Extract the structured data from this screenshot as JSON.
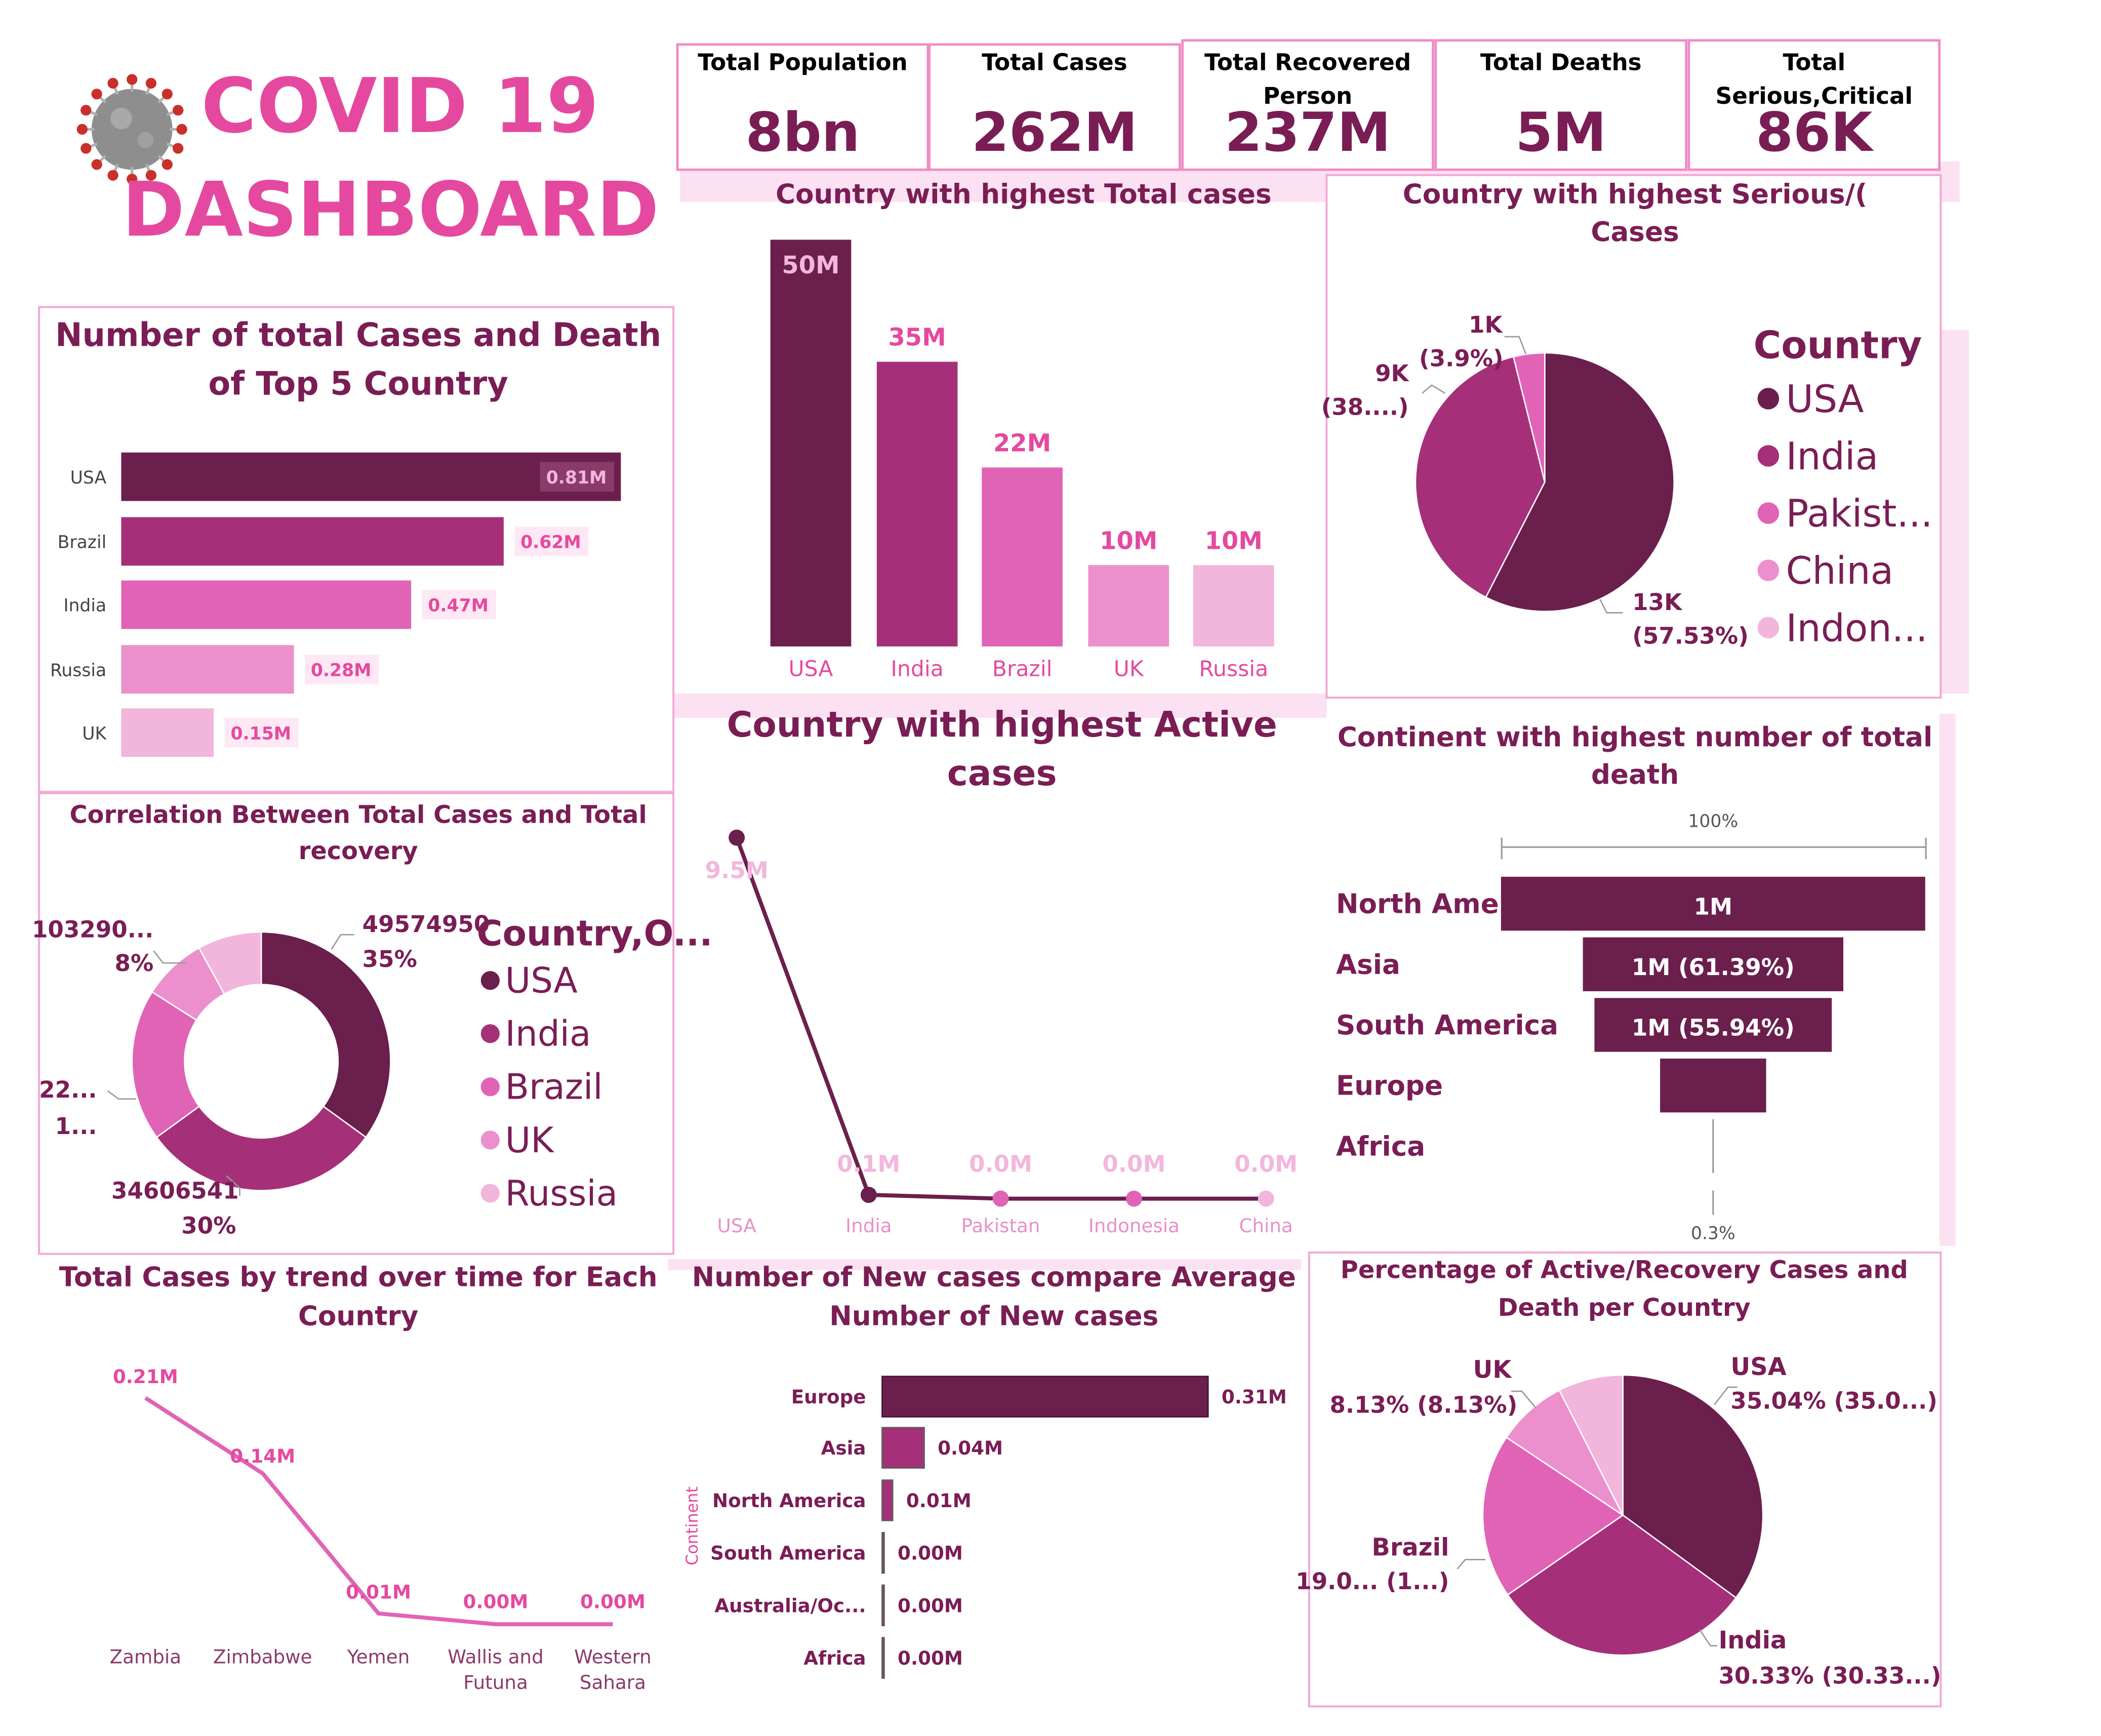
{
  "header": {
    "title_line1": "COVID 19",
    "title_line2": "DASHBOARD"
  },
  "kpis": [
    {
      "label_lines": [
        "Total Population"
      ],
      "value": "8bn"
    },
    {
      "label_lines": [
        "Total Cases"
      ],
      "value": "262M"
    },
    {
      "label_lines": [
        "Total Recovered",
        "Person"
      ],
      "value": "237M"
    },
    {
      "label_lines": [
        "Total Deaths"
      ],
      "value": "5M"
    },
    {
      "label_lines": [
        "Total",
        "Serious,Critical"
      ],
      "value": "86K"
    }
  ],
  "colors": {
    "c1": "#6b1f4d",
    "c2": "#a53079",
    "c3": "#e163b6",
    "c4": "#ec8fcd",
    "c5": "#f2b5dc",
    "accent": "#e5499f",
    "title": "#7a1d55"
  },
  "chart_data": [
    {
      "id": "top5_cases_death",
      "type": "bar",
      "orientation": "horizontal",
      "title_lines": [
        "Number of total Cases and Death",
        "of Top 5 Country"
      ],
      "categories": [
        "USA",
        "Brazil",
        "India",
        "Russia",
        "UK"
      ],
      "values": [
        0.81,
        0.62,
        0.47,
        0.28,
        0.15
      ],
      "value_labels": [
        "0.81M",
        "0.62M",
        "0.47M",
        "0.28M",
        "0.15M"
      ]
    },
    {
      "id": "highest_total_cases",
      "type": "bar",
      "title_lines": [
        "Country with highest Total cases"
      ],
      "categories": [
        "USA",
        "India",
        "Brazil",
        "UK",
        "Russia"
      ],
      "values": [
        50,
        35,
        22,
        10,
        10
      ],
      "value_labels": [
        "50M",
        "35M",
        "22M",
        "10M",
        "10M"
      ]
    },
    {
      "id": "serious_critical",
      "type": "pie",
      "title_lines": [
        "Country with highest Serious/(",
        "Cases"
      ],
      "legend_title": "Country",
      "legend": [
        "USA",
        "India",
        "Pakist...",
        "China",
        "Indon..."
      ],
      "slices": [
        {
          "value": 57.53,
          "label_lines": [
            "13K",
            "(57.53%)"
          ]
        },
        {
          "value": 38.57,
          "label_lines": [
            "9K",
            "(38....)"
          ]
        },
        {
          "value": 3.9,
          "label_lines": [
            "1K",
            "(3.9%)"
          ]
        }
      ]
    },
    {
      "id": "correlation_donut",
      "type": "pie",
      "donut": true,
      "title_lines": [
        "Correlation Between Total Cases and Total",
        "recovery"
      ],
      "legend_title": "Country,O...",
      "legend": [
        "USA",
        "India",
        "Brazil",
        "UK",
        "Russia"
      ],
      "slices": [
        {
          "value": 35,
          "label_lines": [
            "49574950",
            "35%"
          ]
        },
        {
          "value": 30,
          "label_lines": [
            "34606541",
            "30%"
          ]
        },
        {
          "value": 19,
          "label_lines": [
            "22...",
            "1..."
          ]
        },
        {
          "value": 8,
          "label_lines": []
        },
        {
          "value": 8,
          "label_lines": [
            "103290...",
            "8%"
          ]
        }
      ]
    },
    {
      "id": "highest_active",
      "type": "line",
      "title_lines": [
        "Country with highest Active",
        "cases"
      ],
      "x": [
        "USA",
        "India",
        "Pakistan",
        "Indonesia",
        "China"
      ],
      "values": [
        9.5,
        0.1,
        0.0,
        0.0,
        0.0
      ],
      "value_labels": [
        "9.5M",
        "0.1M",
        "0.0M",
        "0.0M",
        "0.0M"
      ]
    },
    {
      "id": "continent_deaths",
      "type": "bar",
      "subtype": "funnel",
      "title_lines": [
        "Continent with highest number of total",
        "death"
      ],
      "categories": [
        "North Amer",
        "Asia",
        "South America",
        "Europe",
        "Africa"
      ],
      "values": [
        100,
        61.39,
        55.94,
        25,
        0.3
      ],
      "value_labels": [
        "1M",
        "1M (61.39%)",
        "1M (55.94%)",
        "",
        ""
      ],
      "top_label": "100%",
      "bottom_label": "0.3%"
    },
    {
      "id": "trend_over_time",
      "type": "line",
      "title_lines": [
        "Total Cases by trend over time for Each",
        "Country"
      ],
      "x": [
        "Zambia",
        "Zimbabwe",
        "Yemen",
        "Wallis and Futuna",
        "Western Sahara"
      ],
      "x_label_lines": [
        [
          "Zambia"
        ],
        [
          "Zimbabwe"
        ],
        [
          "Yemen"
        ],
        [
          "Wallis and",
          "Futuna"
        ],
        [
          "Western",
          "Sahara"
        ]
      ],
      "values": [
        0.21,
        0.14,
        0.01,
        0.0,
        0.0
      ],
      "value_labels": [
        "0.21M",
        "0.14M",
        "0.01M",
        "0.00M",
        "0.00M"
      ]
    },
    {
      "id": "new_cases",
      "type": "bar",
      "orientation": "horizontal",
      "title_lines": [
        "Number of New cases compare Average",
        "Number of New cases"
      ],
      "ylabel": "Continent",
      "categories": [
        "Europe",
        "Asia",
        "North America",
        "South America",
        "Australia/Oc...",
        "Africa"
      ],
      "values": [
        0.31,
        0.04,
        0.01,
        0.0,
        0.0,
        0.0
      ],
      "value_labels": [
        "0.31M",
        "0.04M",
        "0.01M",
        "0.00M",
        "0.00M",
        "0.00M"
      ]
    },
    {
      "id": "active_recovery_death",
      "type": "pie",
      "title_lines": [
        "Percentage of Active/Recovery Cases and",
        "Death per Country"
      ],
      "slices": [
        {
          "value": 35.04,
          "label_lines": [
            "USA",
            "35.04% (35.0...)"
          ]
        },
        {
          "value": 30.33,
          "label_lines": [
            "India",
            "30.33% (30.33...)"
          ]
        },
        {
          "value": 19.0,
          "label_lines": [
            "Brazil",
            "19.0... (1...)"
          ]
        },
        {
          "value": 8.13,
          "label_lines": [
            "UK",
            "8.13% (8.13%)"
          ]
        },
        {
          "value": 7.5,
          "label_lines": []
        }
      ]
    }
  ]
}
